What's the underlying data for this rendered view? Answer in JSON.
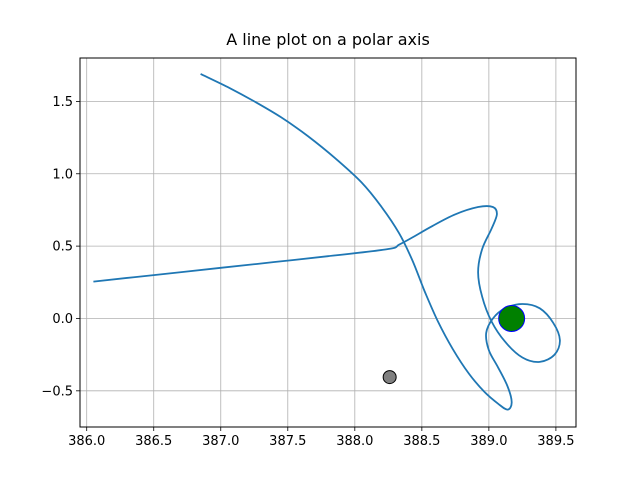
{
  "chart_data": {
    "type": "line",
    "title": "A line plot on a polar axis",
    "xlabel": "",
    "ylabel": "",
    "xlim": [
      385.95,
      389.65
    ],
    "ylim": [
      -0.75,
      1.8
    ],
    "grid": true,
    "x_ticks": [
      386.0,
      386.5,
      387.0,
      387.5,
      388.0,
      388.5,
      389.0,
      389.5
    ],
    "x_tick_labels": [
      "386.0",
      "386.5",
      "387.0",
      "387.5",
      "388.0",
      "388.5",
      "389.0",
      "389.5"
    ],
    "y_ticks": [
      -0.5,
      0.0,
      0.5,
      1.0,
      1.5
    ],
    "y_tick_labels": [
      "−0.5",
      "0.0",
      "0.5",
      "1.0",
      "1.5"
    ],
    "series": [
      {
        "color": "#1f77b4",
        "points": [
          [
            386.85,
            1.69
          ],
          [
            387.05,
            1.6
          ],
          [
            387.25,
            1.5
          ],
          [
            387.45,
            1.39
          ],
          [
            387.65,
            1.26
          ],
          [
            387.85,
            1.11
          ],
          [
            388.05,
            0.94
          ],
          [
            388.2,
            0.77
          ],
          [
            388.33,
            0.59
          ],
          [
            388.43,
            0.4
          ],
          [
            388.52,
            0.19
          ],
          [
            388.62,
            -0.02
          ],
          [
            388.73,
            -0.21
          ],
          [
            388.85,
            -0.38
          ],
          [
            388.97,
            -0.51
          ],
          [
            389.07,
            -0.59
          ],
          [
            389.14,
            -0.63
          ],
          [
            389.17,
            -0.58
          ],
          [
            389.14,
            -0.47
          ],
          [
            389.07,
            -0.34
          ],
          [
            389.0,
            -0.22
          ],
          [
            388.98,
            -0.1
          ],
          [
            389.03,
            0.0
          ],
          [
            389.12,
            0.07
          ],
          [
            389.25,
            0.1
          ],
          [
            389.38,
            0.07
          ],
          [
            389.48,
            -0.03
          ],
          [
            389.53,
            -0.15
          ],
          [
            389.49,
            -0.25
          ],
          [
            389.38,
            -0.3
          ],
          [
            389.25,
            -0.27
          ],
          [
            389.12,
            -0.16
          ],
          [
            389.02,
            -0.02
          ],
          [
            388.95,
            0.15
          ],
          [
            388.92,
            0.32
          ],
          [
            388.95,
            0.48
          ],
          [
            389.02,
            0.62
          ],
          [
            389.06,
            0.72
          ],
          [
            389.03,
            0.77
          ],
          [
            388.92,
            0.77
          ],
          [
            388.75,
            0.72
          ],
          [
            388.58,
            0.64
          ],
          [
            388.43,
            0.56
          ],
          [
            388.33,
            0.51
          ],
          [
            388.25,
            0.48
          ],
          [
            387.8,
            0.43
          ],
          [
            387.4,
            0.39
          ],
          [
            387.0,
            0.35
          ],
          [
            386.5,
            0.3
          ],
          [
            386.05,
            0.255
          ]
        ]
      }
    ],
    "markers": [
      {
        "x": 389.17,
        "y": 0.0,
        "size": "large",
        "fill": "#008000",
        "edge": "#0000ff"
      },
      {
        "x": 388.26,
        "y": -0.405,
        "size": "small",
        "fill": "#808080",
        "edge": "#000000"
      }
    ]
  }
}
